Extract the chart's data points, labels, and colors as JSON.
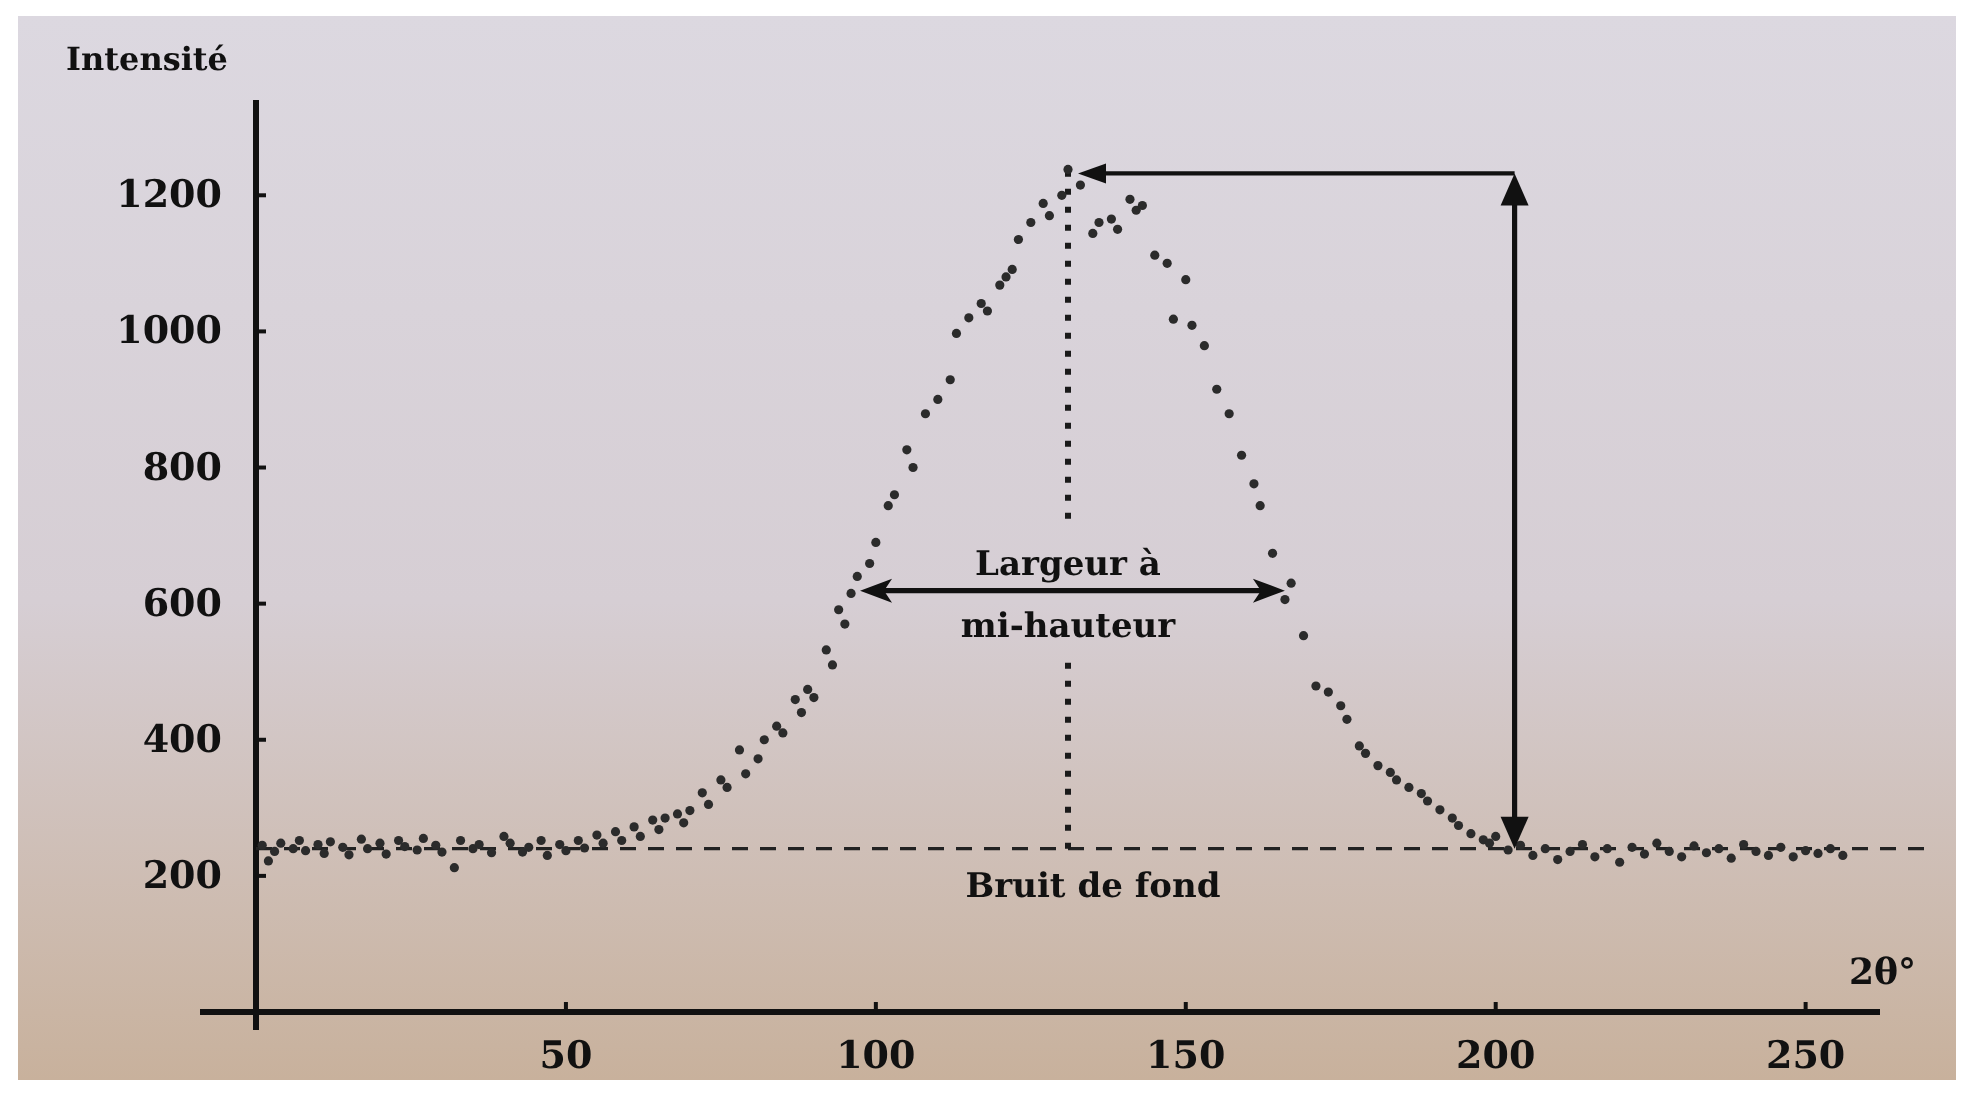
{
  "chart_data": {
    "type": "scatter",
    "xlabel": "2θ°",
    "ylabel": "Intensité",
    "xlim": [
      0,
      262
    ],
    "ylim": [
      0,
      1340
    ],
    "xticks": [
      50,
      100,
      150,
      200,
      250
    ],
    "yticks": [
      200,
      400,
      600,
      800,
      1000,
      1200
    ],
    "marker": "circle",
    "series": [
      {
        "color": "#2b2b2b",
        "x": [
          1,
          2,
          3,
          4,
          6,
          7,
          8,
          10,
          11,
          12,
          14,
          15,
          17,
          18,
          20,
          21,
          23,
          24,
          26,
          27,
          29,
          30,
          32,
          33,
          35,
          36,
          38,
          40,
          41,
          43,
          44,
          46,
          47,
          49,
          50,
          52,
          53,
          55,
          56,
          58,
          59,
          61,
          62,
          64,
          65,
          66,
          68,
          69,
          70,
          72,
          73,
          75,
          76,
          78,
          79,
          81,
          82,
          84,
          85,
          87,
          88,
          89,
          90,
          92,
          93,
          94,
          95,
          96,
          97,
          99,
          100,
          102,
          103,
          105,
          106,
          108,
          110,
          112,
          113,
          115,
          117,
          118,
          120,
          121,
          122,
          123,
          125,
          127,
          128,
          130,
          131,
          133,
          135,
          136,
          138,
          139,
          141,
          142,
          143,
          145,
          147,
          148,
          150,
          151,
          153,
          155,
          157,
          159,
          161,
          162,
          164,
          166,
          167,
          169,
          171,
          173,
          175,
          176,
          178,
          179,
          181,
          183,
          184,
          186,
          188,
          189,
          191,
          193,
          194,
          196,
          198,
          199,
          200,
          202,
          204,
          206,
          208,
          210,
          212,
          214,
          216,
          218,
          220,
          222,
          224,
          226,
          228,
          230,
          232,
          234,
          236,
          238,
          240,
          242,
          244,
          246,
          248,
          250,
          252,
          254,
          256
        ],
        "values": [
          245,
          222,
          236,
          248,
          240,
          252,
          237,
          246,
          233,
          250,
          242,
          231,
          254,
          240,
          248,
          232,
          252,
          243,
          238,
          255,
          245,
          235,
          212,
          252,
          240,
          246,
          234,
          258,
          248,
          235,
          242,
          252,
          230,
          246,
          237,
          252,
          241,
          260,
          248,
          265,
          252,
          272,
          258,
          282,
          268,
          285,
          291,
          278,
          296,
          322,
          305,
          341,
          330,
          385,
          350,
          372,
          400,
          420,
          410,
          459,
          440,
          474,
          462,
          532,
          510,
          591,
          570,
          615,
          640,
          659,
          690,
          744,
          760,
          826,
          800,
          879,
          900,
          929,
          997,
          1020,
          1041,
          1030,
          1068,
          1080,
          1091,
          1135,
          1160,
          1188,
          1170,
          1200,
          1238,
          1215,
          1144,
          1160,
          1165,
          1150,
          1194,
          1178,
          1185,
          1112,
          1100,
          1018,
          1076,
          1009,
          979,
          915,
          879,
          818,
          776,
          744,
          674,
          606,
          630,
          553,
          479,
          470,
          450,
          430,
          391,
          380,
          362,
          352,
          341,
          330,
          321,
          310,
          297,
          285,
          274,
          262,
          253,
          248,
          258,
          238,
          245,
          230,
          240,
          224,
          236,
          246,
          228,
          240,
          220,
          242,
          232,
          248,
          236,
          228,
          244,
          234,
          240,
          226,
          246,
          236,
          230,
          242,
          228,
          237,
          233,
          240,
          230
        ]
      }
    ],
    "ref_lines": [
      {
        "axis": "y",
        "value": 240,
        "label": "Bruit de fond",
        "line_style": "dashed",
        "color": "#222222"
      },
      {
        "axis": "x",
        "value": 131,
        "line_style": "dotted",
        "color": "#1a1a1a"
      }
    ],
    "annotations": [
      "Largeur à\nmi-hauteur"
    ]
  }
}
